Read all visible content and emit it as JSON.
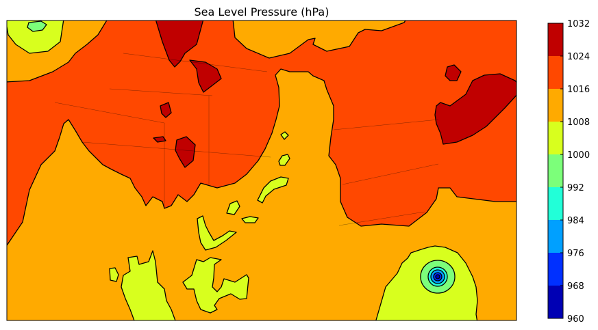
{
  "title": "Sea Level Pressure (hPa)",
  "colorbar": {
    "levels": [
      960,
      968,
      976,
      984,
      992,
      1000,
      1008,
      1016,
      1024,
      1032
    ],
    "labels": [
      "960",
      "968",
      "976",
      "984",
      "992",
      "1000",
      "1008",
      "1016",
      "1024",
      "1032"
    ],
    "colors": [
      "#0000b4",
      "#0030ff",
      "#00a0ff",
      "#22ffd8",
      "#7cff7a",
      "#d8ff1e",
      "#ffaa00",
      "#ff4800",
      "#c00000"
    ]
  },
  "map": {
    "background_level": "1008-1016",
    "features": [
      "hurricane low near Florida / Gulf of Mexico",
      "high pressure over northern plains and New England"
    ]
  }
}
